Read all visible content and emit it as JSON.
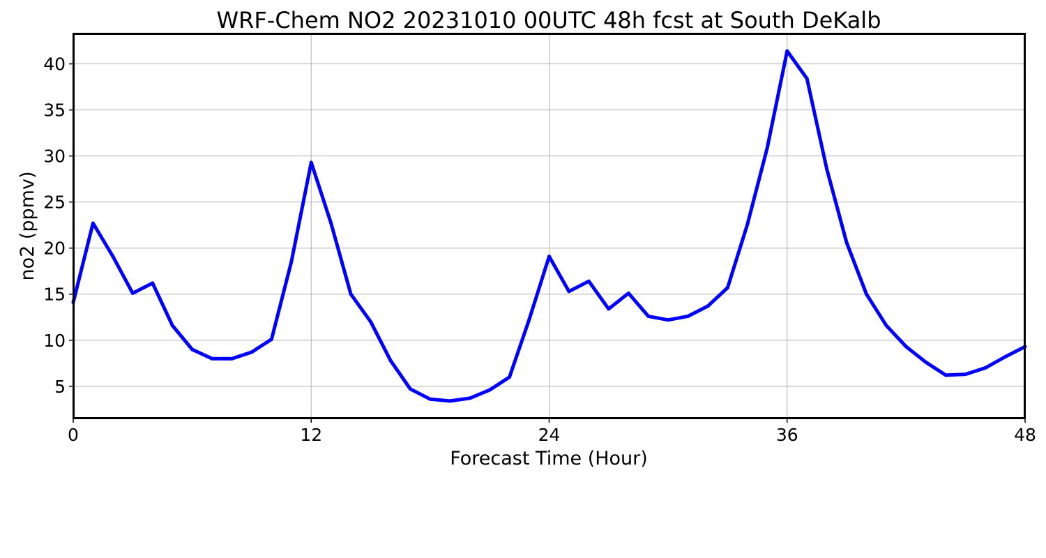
{
  "chart_data": {
    "type": "line",
    "title": "WRF-Chem NO2  20231010 00UTC 48h fcst at South DeKalb",
    "xlabel": "Forecast Time (Hour)",
    "ylabel": "no2  (ppmv)",
    "xlim": [
      0,
      48
    ],
    "ylim": [
      1.5,
      43.3
    ],
    "x_ticks": [
      0,
      12,
      24,
      36,
      48
    ],
    "y_ticks": [
      5,
      10,
      15,
      20,
      25,
      30,
      35,
      40
    ],
    "grid": true,
    "legend": "none",
    "series": [
      {
        "color": "#0000ff",
        "x": [
          0,
          1,
          2,
          3,
          4,
          5,
          6,
          7,
          8,
          9,
          10,
          11,
          12,
          13,
          14,
          15,
          16,
          17,
          18,
          19,
          20,
          21,
          22,
          23,
          24,
          25,
          26,
          27,
          28,
          29,
          30,
          31,
          32,
          33,
          34,
          35,
          36,
          37,
          38,
          39,
          40,
          41,
          42,
          43,
          44,
          45,
          46,
          47,
          48
        ],
        "values": [
          14.1,
          22.7,
          19.1,
          15.1,
          16.2,
          11.6,
          9.0,
          8.0,
          8.0,
          8.7,
          10.1,
          18.5,
          29.3,
          22.7,
          15.0,
          12.0,
          7.8,
          4.7,
          3.6,
          3.4,
          3.7,
          4.6,
          6.0,
          12.3,
          19.1,
          15.3,
          16.4,
          13.4,
          15.1,
          12.6,
          12.2,
          12.6,
          13.7,
          15.7,
          22.6,
          30.9,
          41.4,
          38.4,
          28.6,
          20.6,
          15.0,
          11.6,
          9.3,
          7.6,
          6.2,
          6.3,
          7.0,
          8.2,
          9.3
        ]
      }
    ]
  }
}
